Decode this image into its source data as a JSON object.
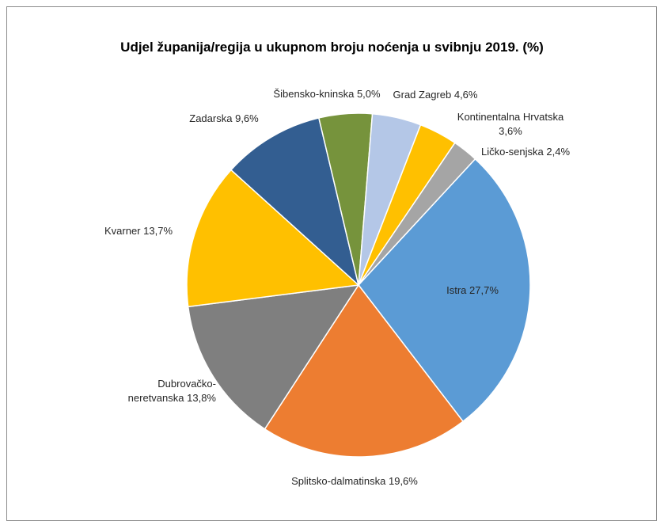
{
  "chart_data": {
    "type": "pie",
    "title": "Udjel županija/regija u ukupnom broju noćenja u svibnju 2019. (%)",
    "categories": [
      "Istra",
      "Splitsko-dalmatinska",
      "Dubrovačko-neretvanska",
      "Kvarner",
      "Zadarska",
      "Šibensko-kninska",
      "Grad Zagreb",
      "Kontinentalna Hrvatska",
      "Ličko-senjska"
    ],
    "values": [
      27.7,
      19.6,
      13.8,
      13.7,
      9.6,
      5.0,
      4.6,
      3.6,
      2.4
    ],
    "value_labels": [
      "27,7%",
      "19,6%",
      "13,8%",
      "13,7%",
      "9,6%",
      "5,0%",
      "4,6%",
      "3,6%",
      "2,4%"
    ],
    "colors": [
      "#5b9bd5",
      "#ed7d31",
      "#7f7f7f",
      "#ffc000",
      "#335e91",
      "#76933c",
      "#b4c7e7",
      "#ffc000",
      "#a5a5a5"
    ]
  }
}
